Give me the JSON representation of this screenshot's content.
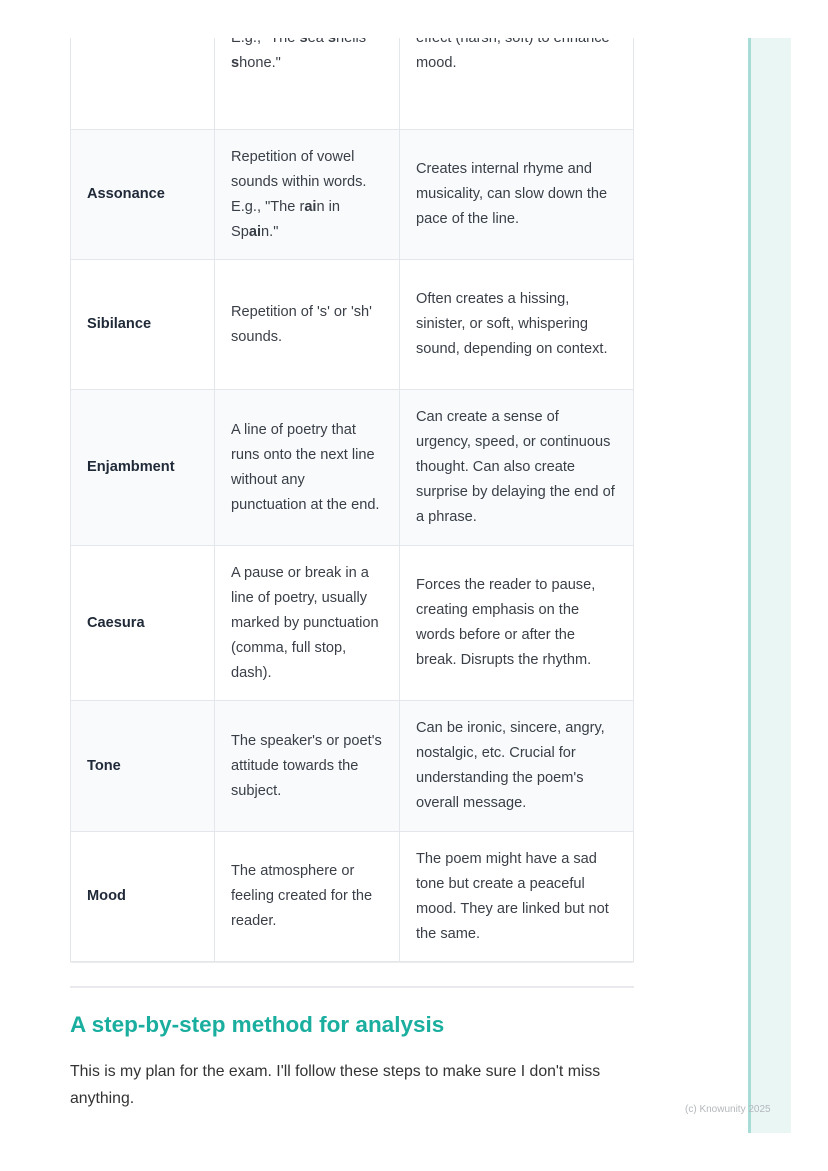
{
  "table": {
    "rows": [
      {
        "term": "",
        "definition": [
          {
            "t": "consonant sounds. E.g., \"The "
          },
          {
            "t": "s",
            "b": true
          },
          {
            "t": "ea "
          },
          {
            "t": "s",
            "b": true
          },
          {
            "t": "hells "
          },
          {
            "t": "s",
            "b": true
          },
          {
            "t": "hone.\""
          }
        ],
        "effect": "can create a specific sound effect (harsh, soft) to enhance mood.",
        "height": 183,
        "shaded": false
      },
      {
        "term": "Assonance",
        "definition": [
          {
            "t": "Repetition of vowel sounds within words. E.g., \"The r"
          },
          {
            "t": "ai",
            "b": true
          },
          {
            "t": "n in Sp"
          },
          {
            "t": "ai",
            "b": true
          },
          {
            "t": "n.\""
          }
        ],
        "effect": "Creates internal rhyme and musicality, can slow down the pace of the line.",
        "height": 130,
        "shaded": true
      },
      {
        "term": "Sibilance",
        "definition": [
          {
            "t": "Repetition of 's' or 'sh' sounds."
          }
        ],
        "effect": "Often creates a hissing, sinister, or soft, whispering sound, depending on context.",
        "height": 130,
        "shaded": false
      },
      {
        "term": "Enjambment",
        "definition": [
          {
            "t": "A line of poetry that runs onto the next line without any punctuation at the end."
          }
        ],
        "effect": "Can create a sense of urgency, speed, or continuous thought. Can also create surprise by delaying the end of a phrase.",
        "height": 156,
        "shaded": true
      },
      {
        "term": "Caesura",
        "definition": [
          {
            "t": "A pause or break in a line of poetry, usually marked by punctuation (comma, full stop, dash)."
          }
        ],
        "effect": "Forces the reader to pause, creating emphasis on the words before or after the break. Disrupts the rhythm.",
        "height": 155,
        "shaded": false
      },
      {
        "term": "Tone",
        "definition": [
          {
            "t": "The speaker's or poet's attitude towards the subject."
          }
        ],
        "effect": "Can be ironic, sincere, angry, nostalgic, etc. Crucial for understanding the poem's overall message.",
        "height": 131,
        "shaded": true
      },
      {
        "term": "Mood",
        "definition": [
          {
            "t": "The atmosphere or feeling created for the reader."
          }
        ],
        "effect": "The poem might have a sad tone but create a peaceful mood. They are linked but not the same.",
        "height": 130,
        "shaded": false
      }
    ]
  },
  "section": {
    "heading": "A step-by-step method for analysis",
    "intro": "This is my plan for the exam. I'll follow these steps to make sure I don't miss anything."
  },
  "footer": "(c) Knowunity 2025",
  "colors": {
    "heading": "#1aae9f",
    "side_panel": "#eaf6f4",
    "side_border": "#a8dcd6"
  }
}
